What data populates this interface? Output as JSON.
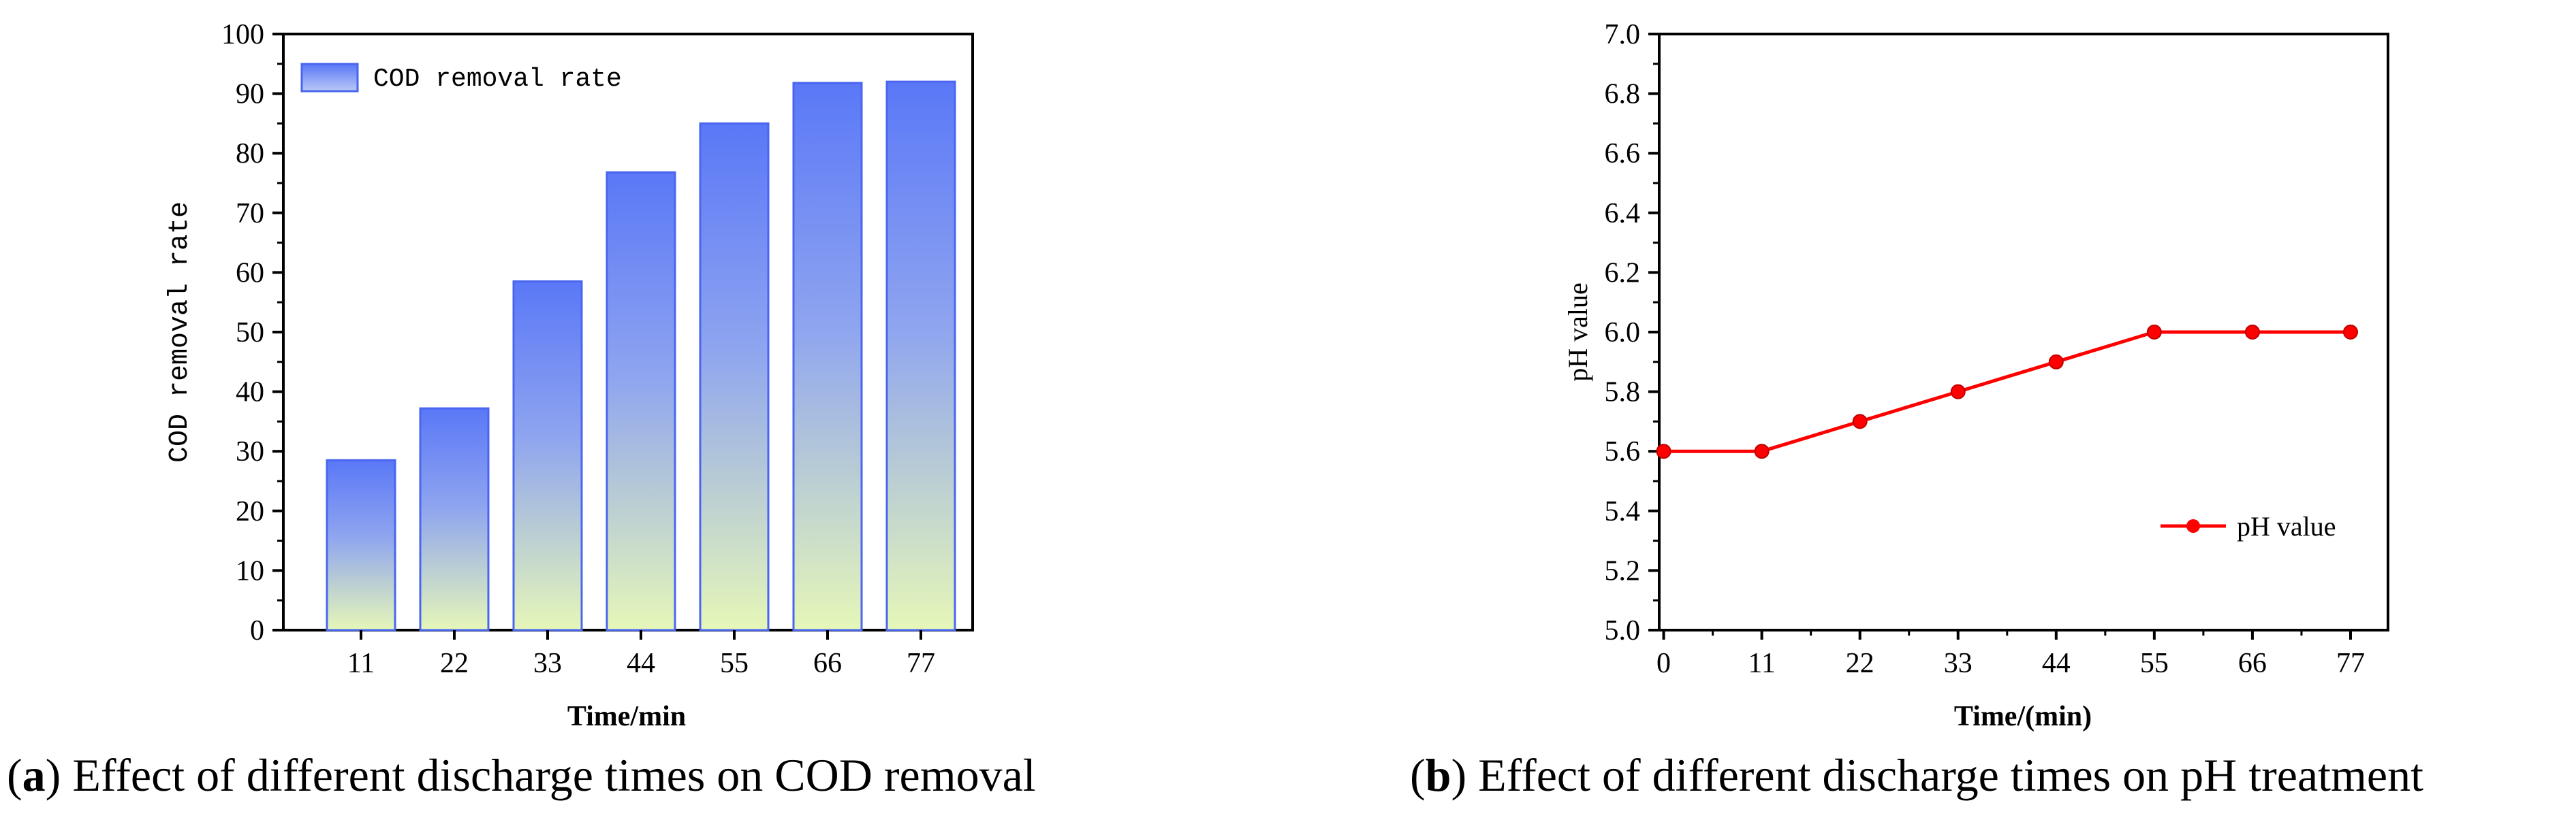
{
  "chart_data": [
    {
      "type": "bar",
      "ylabel": "COD removal rate",
      "xlabel": "Time/min",
      "categories": [
        "11",
        "22",
        "33",
        "44",
        "55",
        "66",
        "77"
      ],
      "series": [
        {
          "name": "COD removal rate",
          "values": [
            28.5,
            37.2,
            58.5,
            76.8,
            85.0,
            91.8,
            92.0
          ]
        }
      ],
      "ylim": [
        0,
        100
      ],
      "yticks": [
        "0",
        "10",
        "20",
        "30",
        "40",
        "50",
        "60",
        "70",
        "80",
        "90",
        "100"
      ],
      "legend_position": "top-left",
      "colors": {
        "top": "#5a78f7",
        "bottom": "#e6f7b8",
        "edge": "#4a66f0"
      }
    },
    {
      "type": "line",
      "ylabel": "pH value",
      "xlabel": "Time/(min)",
      "x": [
        0,
        11,
        22,
        33,
        44,
        55,
        66,
        77
      ],
      "xticks": [
        "0",
        "11",
        "22",
        "33",
        "44",
        "55",
        "66",
        "77"
      ],
      "series": [
        {
          "name": "pH value",
          "values": [
            5.6,
            5.6,
            5.7,
            5.8,
            5.9,
            6.0,
            6.0,
            6.0
          ]
        }
      ],
      "ylim": [
        5.0,
        7.0
      ],
      "yticks": [
        "5.0",
        "5.2",
        "5.4",
        "5.6",
        "5.8",
        "6.0",
        "6.2",
        "6.4",
        "6.6",
        "6.8",
        "7.0"
      ],
      "legend_position": "bottom-right",
      "colors": {
        "line": "#ff0000"
      }
    }
  ],
  "captions": {
    "a_letter": "a",
    "a_text": " Effect of different discharge times on COD removal",
    "b_letter": "b",
    "b_text": " Effect of different discharge times on pH treatment"
  }
}
